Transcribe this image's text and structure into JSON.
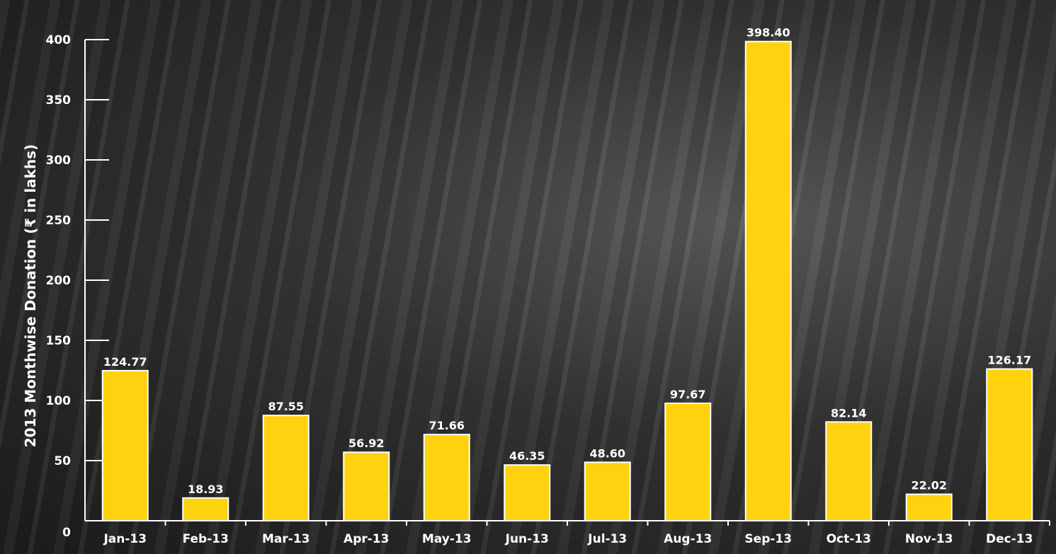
{
  "chart_data": {
    "type": "bar",
    "title": "",
    "xlabel": "",
    "ylabel": "2013 Monthwise Donation  (₹ in lakhs)",
    "ylim": [
      0,
      400
    ],
    "yticks": [
      0,
      50,
      100,
      150,
      200,
      250,
      300,
      350,
      400
    ],
    "categories": [
      "Jan-13",
      "Feb-13",
      "Mar-13",
      "Apr-13",
      "May-13",
      "Jun-13",
      "Jul-13",
      "Aug-13",
      "Sep-13",
      "Oct-13",
      "Nov-13",
      "Dec-13"
    ],
    "values": [
      124.77,
      18.93,
      87.55,
      56.92,
      71.66,
      46.35,
      48.6,
      97.67,
      398.4,
      82.14,
      22.02,
      126.17
    ],
    "value_labels": [
      "124.77",
      "18.93",
      "87.55",
      "56.92",
      "71.66",
      "46.35",
      "48.60",
      "97.67",
      "398.40",
      "82.14",
      "22.02",
      "126.17"
    ],
    "grid": false,
    "legend": "none",
    "colors": {
      "bar": "#FFD20F",
      "bar_border": "#FFFFFF",
      "axis": "#FFFFFF",
      "text": "#FFFFFF"
    }
  }
}
